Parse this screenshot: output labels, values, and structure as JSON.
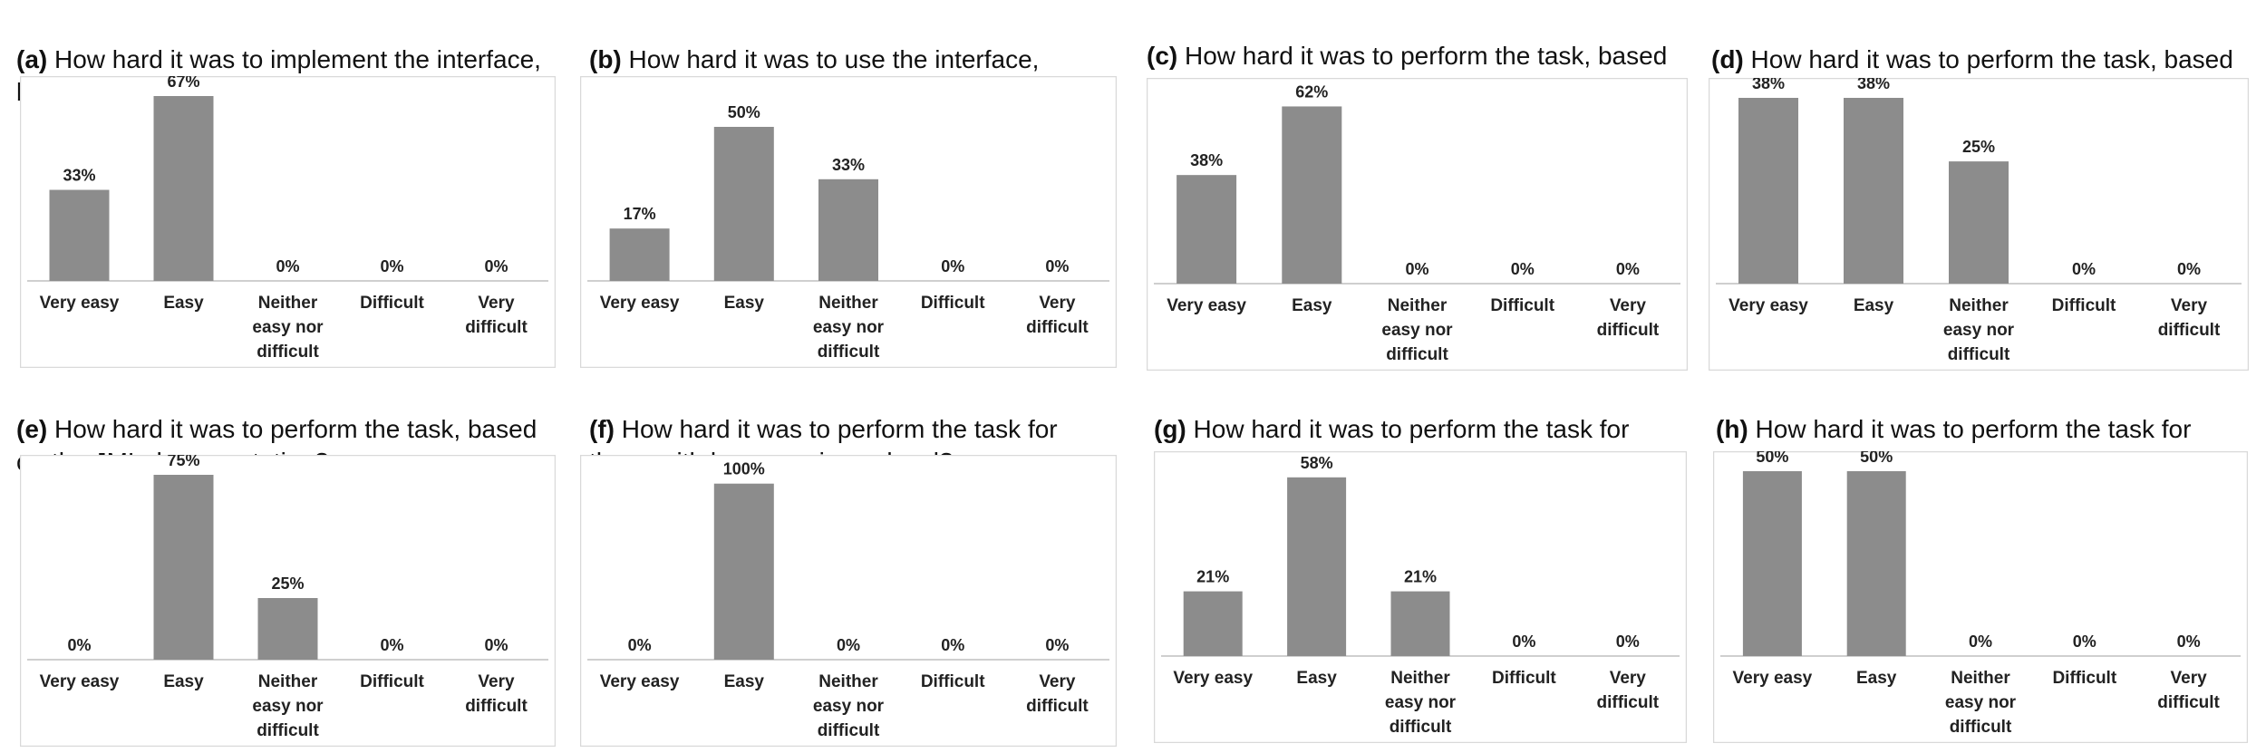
{
  "style": {
    "bar_color": "#8c8c8c",
    "frame_color": "#d9d9d9",
    "axis_color": "#bfbfbf",
    "text_color": "#222222"
  },
  "chart_data": [
    {
      "type": "bar",
      "tag": "(a)",
      "title": "How hard it was to implement the interface,\nbased on the provided documentation?",
      "categories": [
        "Very easy",
        "Easy",
        "Neither easy nor difficult",
        "Difficult",
        "Very difficult"
      ],
      "values": [
        33,
        67,
        0,
        0,
        0
      ],
      "value_labels": [
        "33%",
        "67%",
        "0%",
        "0%",
        "0%"
      ],
      "ylim": [
        0,
        67
      ],
      "grid": false
    },
    {
      "type": "bar",
      "tag": "(b)",
      "title": "How hard it was to use the interface,\nbased on the provided documentation?",
      "categories": [
        "Very easy",
        "Easy",
        "Neither easy nor difficult",
        "Difficult",
        "Very difficult"
      ],
      "values": [
        17,
        50,
        33,
        0,
        0
      ],
      "value_labels": [
        "17%",
        "50%",
        "33%",
        "0%",
        "0%"
      ],
      "ylim": [
        0,
        60
      ],
      "grid": false
    },
    {
      "type": "bar",
      "tag": "(c)",
      "title": "How hard it was to perform the task, based\non the Javadoc documentation?",
      "categories": [
        "Very easy",
        "Easy",
        "Neither easy nor difficult",
        "Difficult",
        "Very difficult"
      ],
      "values": [
        38,
        62,
        0,
        0,
        0
      ],
      "value_labels": [
        "38%",
        "62%",
        "0%",
        "0%",
        "0%"
      ],
      "ylim": [
        0,
        65
      ],
      "grid": false
    },
    {
      "type": "bar",
      "tag": "(d)",
      "title": "How hard it was to perform the task, based\non the ContractJDoc documentation?",
      "categories": [
        "Very easy",
        "Easy",
        "Neither easy nor difficult",
        "Difficult",
        "Very difficult"
      ],
      "values": [
        38,
        38,
        25,
        0,
        0
      ],
      "value_labels": [
        "38%",
        "38%",
        "25%",
        "0%",
        "0%"
      ],
      "ylim": [
        0,
        38
      ],
      "grid": false
    },
    {
      "type": "bar",
      "tag": "(e)",
      "title": "How hard it was to perform the task, based\non the JML documentation?",
      "categories": [
        "Very easy",
        "Easy",
        "Neither easy nor difficult",
        "Difficult",
        "Very difficult"
      ],
      "values": [
        0,
        75,
        25,
        0,
        0
      ],
      "value_labels": [
        "0%",
        "75%",
        "25%",
        "0%",
        "0%"
      ],
      "ylim": [
        0,
        75
      ],
      "grid": false
    },
    {
      "type": "bar",
      "tag": "(f)",
      "title": "How hard it was to perform the task for\nthose with low experience level?",
      "categories": [
        "Very easy",
        "Easy",
        "Neither easy nor difficult",
        "Difficult",
        "Very difficult"
      ],
      "values": [
        0,
        100,
        0,
        0,
        0
      ],
      "value_labels": [
        "0%",
        "100%",
        "0%",
        "0%",
        "0%"
      ],
      "ylim": [
        0,
        105
      ],
      "grid": false
    },
    {
      "type": "bar",
      "tag": "(g)",
      "title": "How hard it was to perform the task for\nthose with medium experience level?",
      "categories": [
        "Very easy",
        "Easy",
        "Neither easy nor difficult",
        "Difficult",
        "Very difficult"
      ],
      "values": [
        21,
        58,
        21,
        0,
        0
      ],
      "value_labels": [
        "21%",
        "58%",
        "21%",
        "0%",
        "0%"
      ],
      "ylim": [
        0,
        60
      ],
      "grid": false
    },
    {
      "type": "bar",
      "tag": "(h)",
      "title": "How hard it was to perform the task for\nthose with high experience level?",
      "categories": [
        "Very easy",
        "Easy",
        "Neither easy nor difficult",
        "Difficult",
        "Very difficult"
      ],
      "values": [
        50,
        50,
        0,
        0,
        0
      ],
      "value_labels": [
        "50%",
        "50%",
        "0%",
        "0%",
        "0%"
      ],
      "ylim": [
        0,
        50
      ],
      "grid": false
    }
  ]
}
